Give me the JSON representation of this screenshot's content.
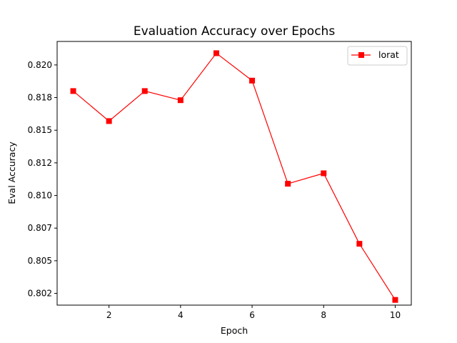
{
  "chart_data": {
    "type": "line",
    "title": "Evaluation Accuracy over Epochs",
    "xlabel": "Epoch",
    "ylabel": "Eval Accuracy",
    "xlim": [
      0.55,
      10.45
    ],
    "ylim": [
      0.8012,
      0.8214
    ],
    "x_ticks": [
      2,
      4,
      6,
      8,
      10
    ],
    "y_ticks": [
      0.8021,
      0.8046,
      0.8071,
      0.8096,
      0.8121,
      0.8146,
      0.8171,
      0.8196
    ],
    "y_tick_labels": [
      "0.802",
      "0.805",
      "0.807",
      "0.810",
      "0.812",
      "0.815",
      "0.818",
      "0.820"
    ],
    "grid": false,
    "legend": {
      "position": "top-right",
      "entries": [
        "lorat"
      ]
    },
    "series": [
      {
        "name": "lorat",
        "color": "#ff0000",
        "marker": "square",
        "x": [
          1,
          2,
          3,
          4,
          5,
          6,
          7,
          8,
          9,
          10
        ],
        "values": [
          0.8176,
          0.8153,
          0.8176,
          0.8169,
          0.8205,
          0.8184,
          0.8105,
          0.8113,
          0.8059,
          0.8016
        ]
      }
    ]
  }
}
